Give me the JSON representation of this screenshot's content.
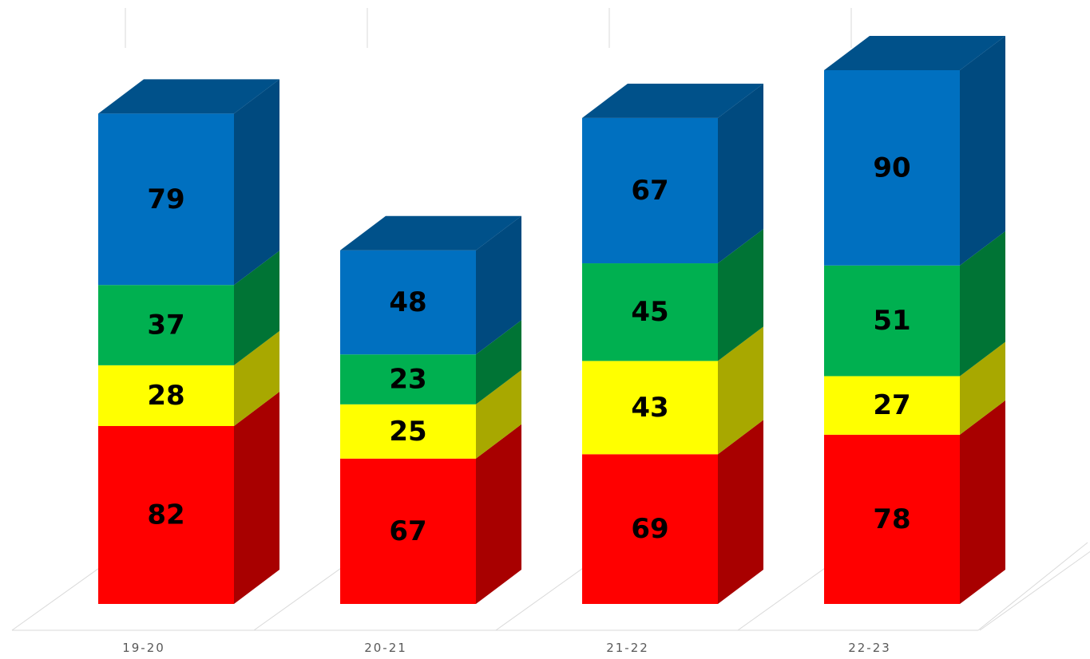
{
  "chart_data": {
    "type": "bar",
    "subtype": "stacked-3d",
    "categories": [
      "19-20",
      "20-21",
      "21-22",
      "22-23"
    ],
    "series": [
      {
        "color": "#ff0000",
        "values": [
          82,
          67,
          69,
          78
        ]
      },
      {
        "color": "#ffff00",
        "values": [
          28,
          25,
          43,
          27
        ]
      },
      {
        "color": "#00b050",
        "values": [
          37,
          23,
          45,
          51
        ]
      },
      {
        "color": "#0070c0",
        "values": [
          79,
          48,
          67,
          90
        ]
      }
    ],
    "title": "",
    "xlabel": "",
    "ylabel": "",
    "ylim": [
      0,
      250
    ],
    "grid": true,
    "legend": "none",
    "data_labels": true
  }
}
